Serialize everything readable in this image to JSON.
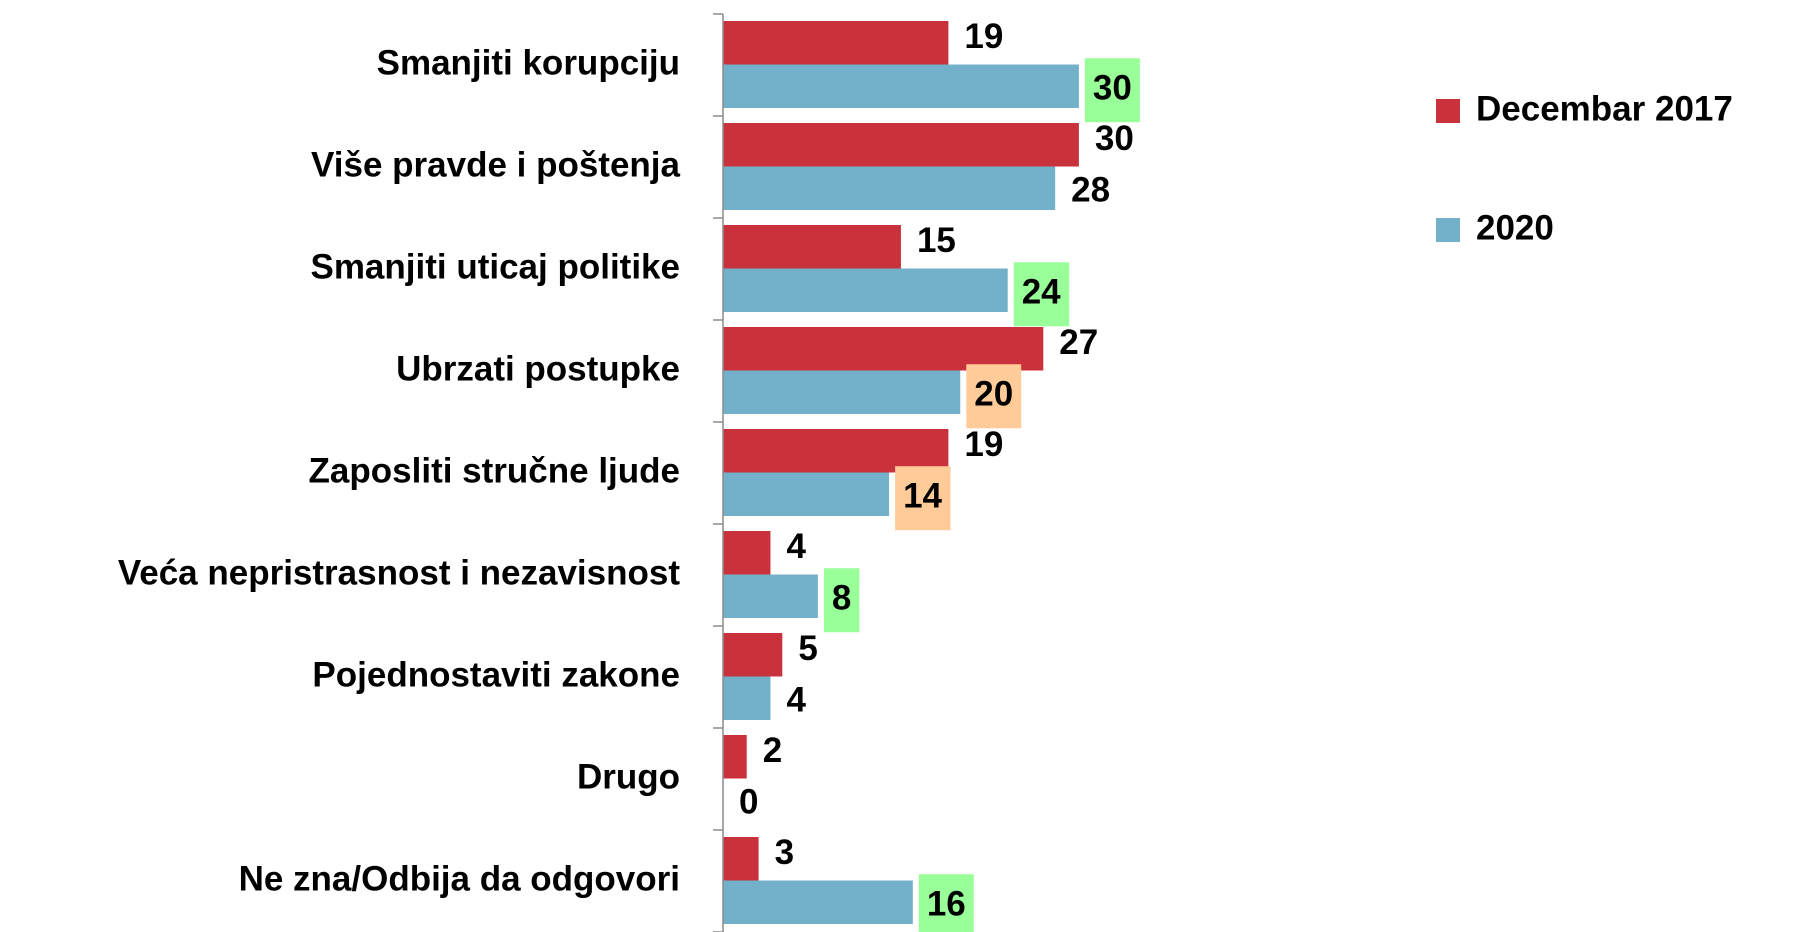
{
  "chart_data": {
    "type": "hbar",
    "categories": [
      "Smanjiti korupciju",
      "Više pravde i poštenja",
      "Smanjiti uticaj politike",
      "Ubrzati postupke",
      "Zaposliti stručne ljude",
      "Veća nepristrasnost i nezavisnost",
      "Pojednostaviti zakone",
      "Drugo",
      "Ne zna/Odbija da odgovori"
    ],
    "series": [
      {
        "name": "Decembar 2017",
        "color": "#c9323d",
        "values": [
          19,
          30,
          15,
          27,
          19,
          4,
          5,
          2,
          3
        ]
      },
      {
        "name": "2020",
        "color": "#73b0c9",
        "values": [
          30,
          28,
          24,
          20,
          14,
          8,
          4,
          0,
          16
        ],
        "label_backgrounds": [
          "#99ff99",
          null,
          "#99ff99",
          "#ffcc99",
          "#ffcc99",
          "#99ff99",
          null,
          null,
          "#99ff99"
        ]
      }
    ],
    "legend": "right"
  }
}
